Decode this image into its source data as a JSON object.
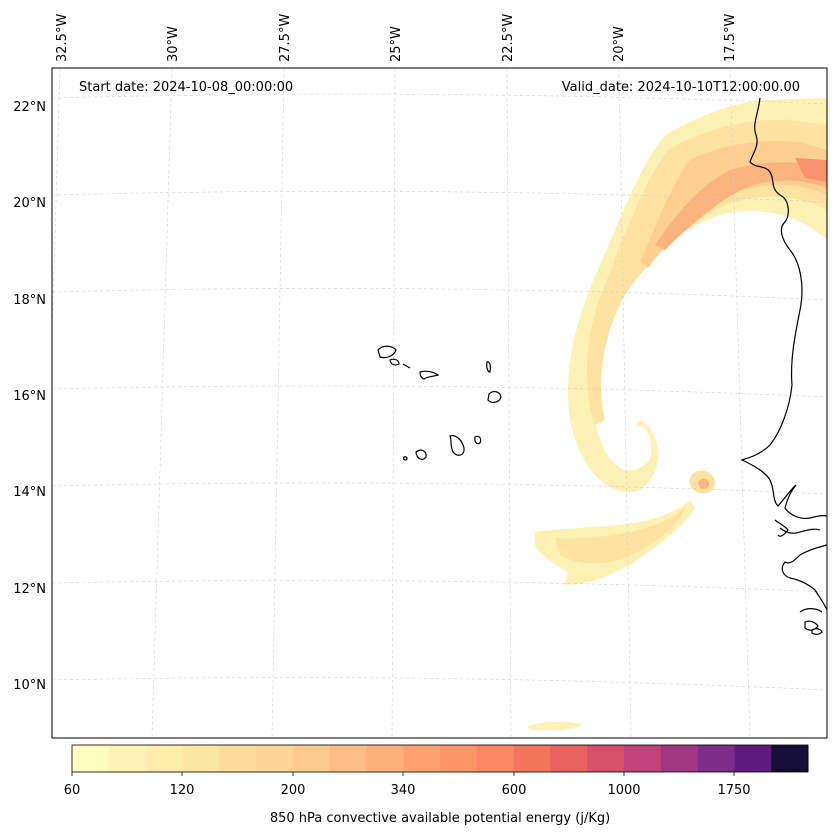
{
  "map": {
    "start_date": "Start date: 2024-10-08_00:00:00",
    "valid_date": "Valid_date: 2024-10-10T12:00:00.00",
    "lon_labels": [
      "32.5°W",
      "30°W",
      "27.5°W",
      "25°W",
      "22.5°W",
      "20°W",
      "17.5°W"
    ],
    "lat_labels": [
      "22°N",
      "20°N",
      "18°N",
      "16°N",
      "14°N",
      "12°N",
      "10°N"
    ],
    "field_colors": {
      "c1": "#fdf1b4",
      "c2": "#fee2a0",
      "c3": "#fdd092",
      "c4": "#fcb47e",
      "c5": "#f8946d"
    },
    "coastline_color": "#000000",
    "grid_color": "#cfcfcf"
  },
  "colorbar": {
    "label": "850 hPa convective available potential energy (j/Kg)",
    "tick_labels": [
      "60",
      "120",
      "200",
      "340",
      "600",
      "1000",
      "1750"
    ],
    "colors": [
      "#fcfdbf",
      "#fcf4b6",
      "#fdedac",
      "#fde5a4",
      "#fedd9c",
      "#fed596",
      "#fecb8f",
      "#febe85",
      "#feb07b",
      "#fea271",
      "#fe9568",
      "#fa8761",
      "#f3765c",
      "#e8635d",
      "#d6506a",
      "#c0437a",
      "#9e3882",
      "#7d2d85",
      "#5f1a80",
      "#140e36"
    ]
  }
}
